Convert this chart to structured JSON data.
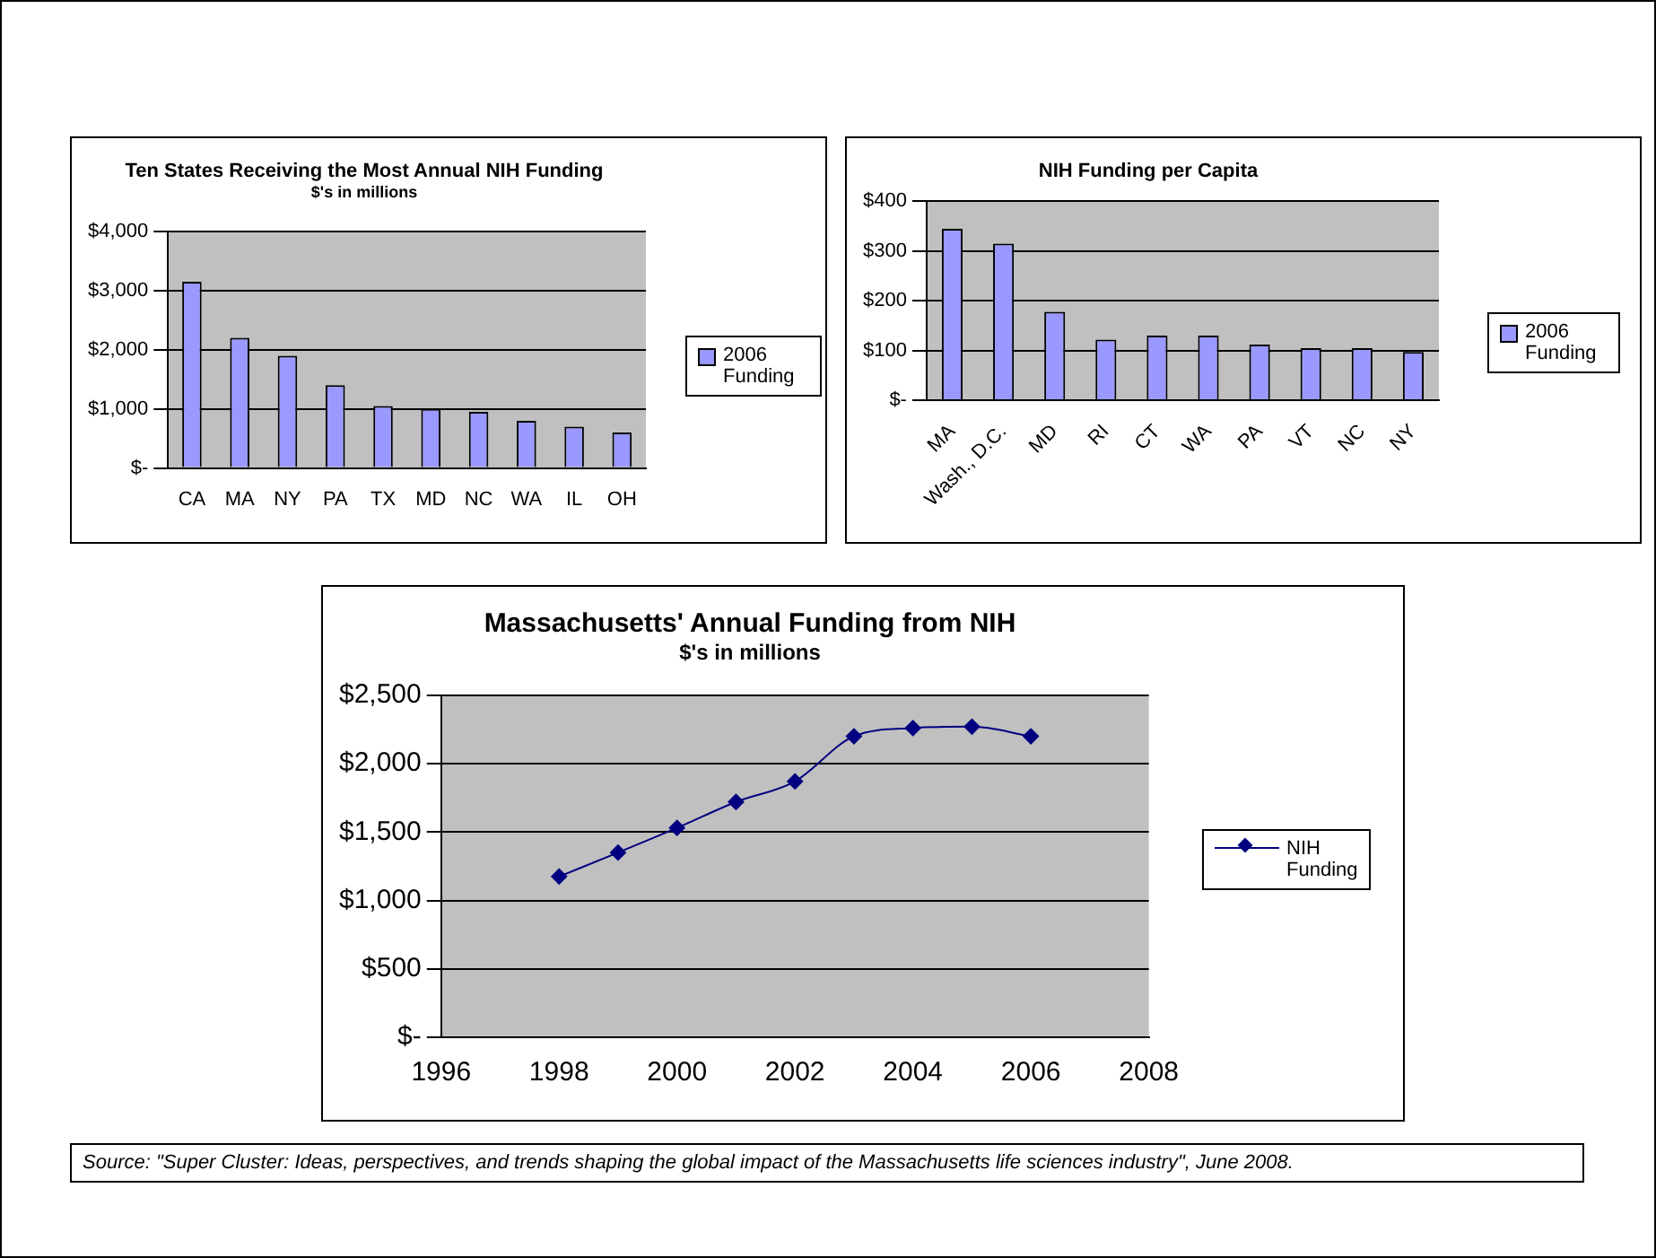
{
  "chart_data": [
    {
      "type": "bar",
      "title": "Ten States Receiving the Most Annual NIH Funding",
      "subtitle": "$'s in millions",
      "categories": [
        "CA",
        "MA",
        "NY",
        "PA",
        "TX",
        "MD",
        "NC",
        "WA",
        "IL",
        "OH"
      ],
      "series": [
        {
          "name": "2006 Funding",
          "color": "#9999ff",
          "values": [
            3150,
            2200,
            1900,
            1400,
            1050,
            1000,
            950,
            800,
            700,
            600
          ]
        }
      ],
      "ylim": [
        0,
        4000
      ],
      "yticks": [
        {
          "value": 0,
          "label": "$-"
        },
        {
          "value": 1000,
          "label": "$1,000"
        },
        {
          "value": 2000,
          "label": "$2,000"
        },
        {
          "value": 3000,
          "label": "$3,000"
        },
        {
          "value": 4000,
          "label": "$4,000"
        }
      ],
      "grid": "y",
      "legend": "right"
    },
    {
      "type": "bar",
      "title": "NIH Funding per Capita",
      "categories": [
        "MA",
        "Wash., D.C.",
        "MD",
        "RI",
        "CT",
        "WA",
        "PA",
        "VT",
        "NC",
        "NY"
      ],
      "series": [
        {
          "name": "2006 Funding",
          "color": "#9999ff",
          "values": [
            345,
            315,
            178,
            122,
            130,
            130,
            112,
            105,
            105,
            97
          ]
        }
      ],
      "ylim": [
        0,
        400
      ],
      "yticks": [
        {
          "value": 0,
          "label": "$-"
        },
        {
          "value": 100,
          "label": "$100"
        },
        {
          "value": 200,
          "label": "$200"
        },
        {
          "value": 300,
          "label": "$300"
        },
        {
          "value": 400,
          "label": "$400"
        }
      ],
      "grid": "y",
      "legend": "right"
    },
    {
      "type": "line",
      "title": "Massachusetts' Annual Funding from NIH",
      "subtitle": "$'s in millions",
      "x": [
        1998,
        1999,
        2000,
        2001,
        2002,
        2003,
        2004,
        2005,
        2006
      ],
      "series": [
        {
          "name": "NIH Funding",
          "color": "#000080",
          "values": [
            1175,
            1350,
            1530,
            1720,
            1870,
            2200,
            2260,
            2270,
            2200
          ]
        }
      ],
      "xlim": [
        1996,
        2008
      ],
      "xticks": [
        1996,
        1998,
        2000,
        2002,
        2004,
        2006,
        2008
      ],
      "ylim": [
        0,
        2500
      ],
      "yticks": [
        {
          "value": 0,
          "label": "$-"
        },
        {
          "value": 500,
          "label": "$500"
        },
        {
          "value": 1000,
          "label": "$1,000"
        },
        {
          "value": 1500,
          "label": "$1,500"
        },
        {
          "value": 2000,
          "label": "$2,000"
        },
        {
          "value": 2500,
          "label": "$2,500"
        }
      ],
      "grid": "y",
      "legend": "right",
      "marker": "diamond",
      "line_style": "solid",
      "annotations": [
        "Source: \"Super Cluster: Ideas, perspectives, and trends shaping the global impact of the Massachusetts life sciences industry\", June 2008."
      ]
    }
  ]
}
